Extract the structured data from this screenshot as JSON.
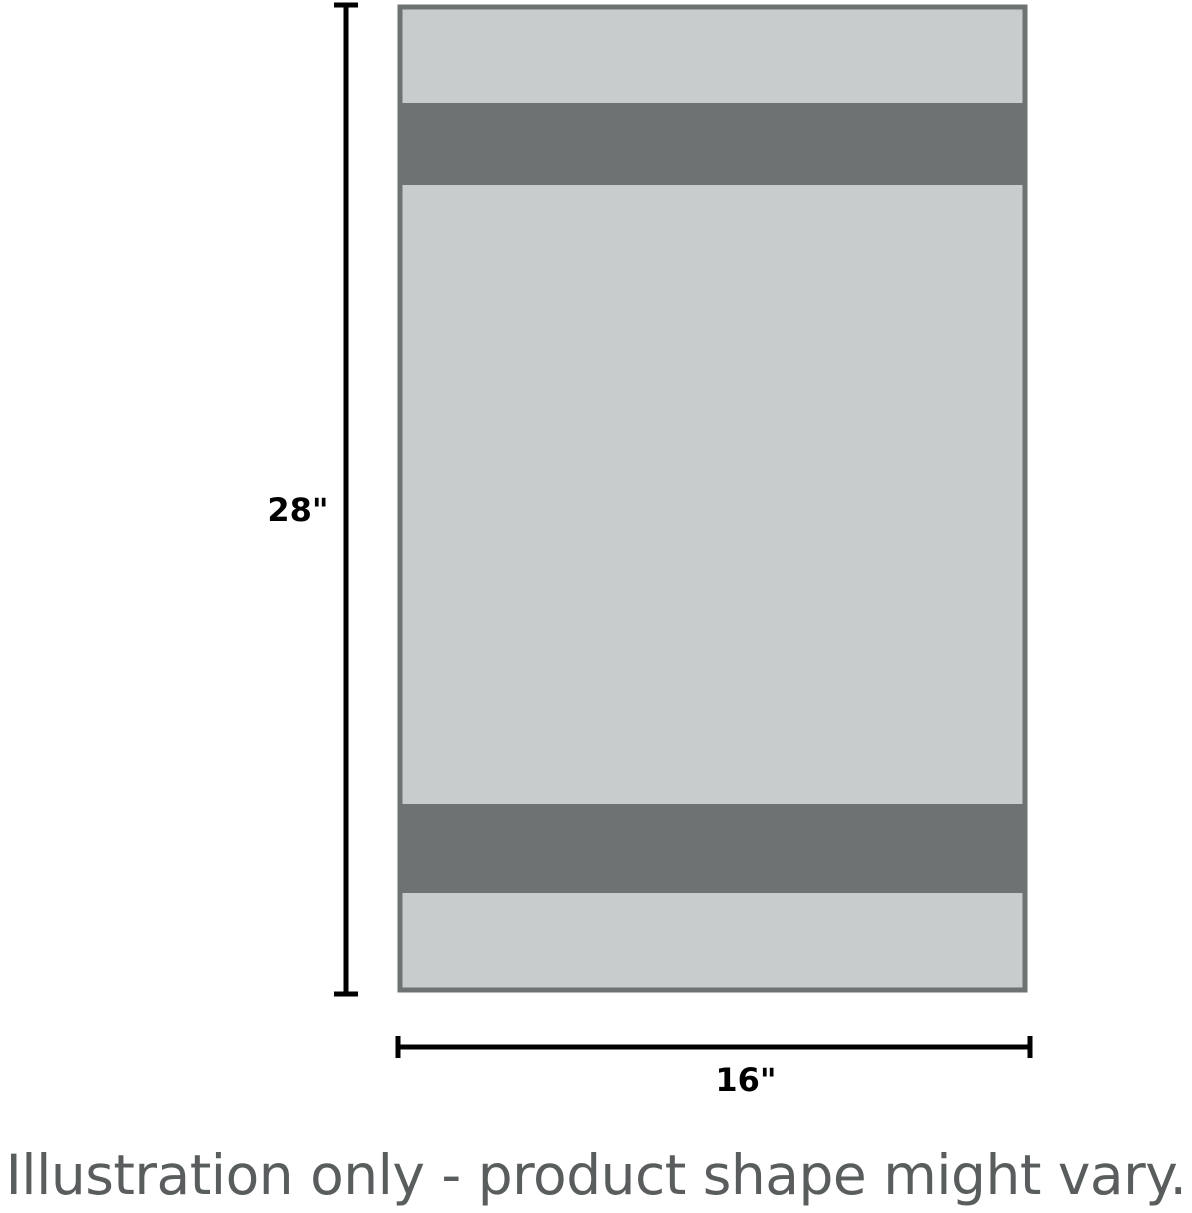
{
  "diagram": {
    "height_label": "28\"",
    "width_label": "16\"",
    "caption": "Illustration only - product shape might vary.",
    "colors": {
      "body": "#c8cccc",
      "band": "#6f7272",
      "border": "#6f7272",
      "dimension_line": "#000000"
    }
  }
}
